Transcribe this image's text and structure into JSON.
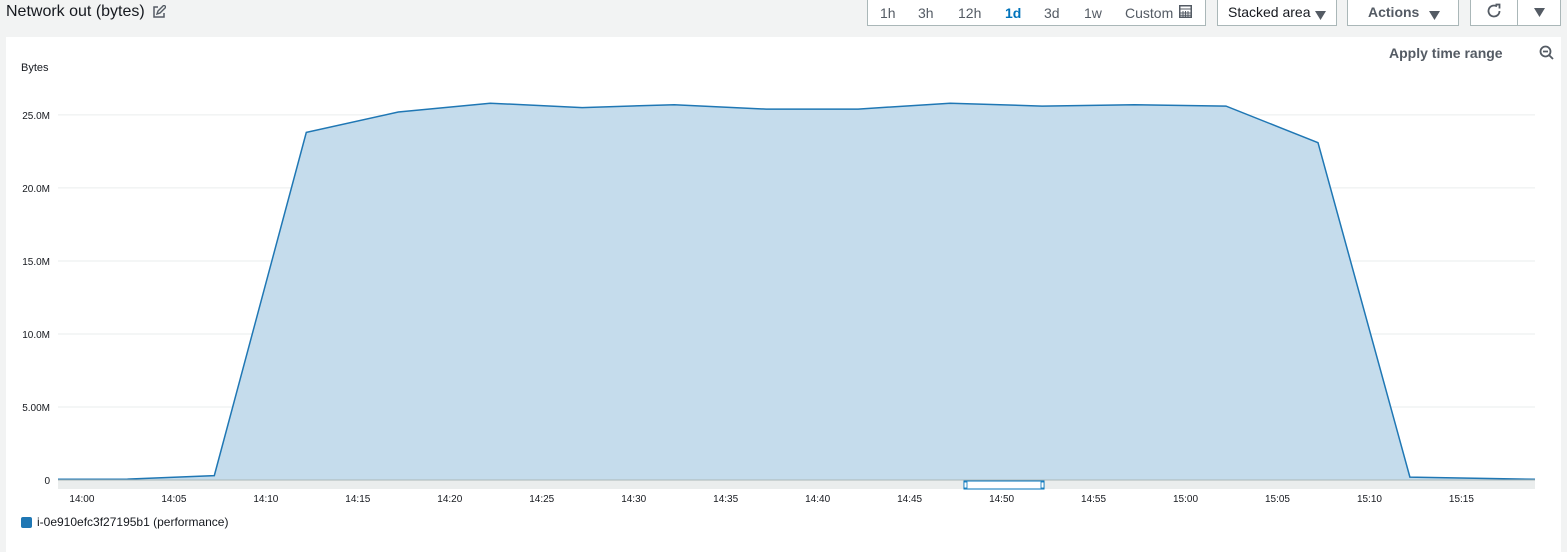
{
  "header": {
    "title": "Network out (bytes)",
    "edit_icon": "edit-icon"
  },
  "time_range": {
    "options": [
      "1h",
      "3h",
      "12h",
      "1d",
      "3d",
      "1w"
    ],
    "active": "1d",
    "custom_label": "Custom",
    "custom_icon": "calendar-icon"
  },
  "view_dropdown": {
    "label": "Stacked area"
  },
  "actions_dropdown": {
    "label": "Actions"
  },
  "refresh_icon": "refresh-icon",
  "more_icon": "caret-down-icon",
  "panel": {
    "apply_label": "Apply time range",
    "zoom_icon": "zoom-out-icon"
  },
  "colors": {
    "accent": "#0073bb",
    "series_line": "#1f77b4",
    "series_fill": "#c5dcec",
    "grid": "#eaeded"
  },
  "chart_data": {
    "type": "area",
    "ylabel": "Bytes",
    "ylim": [
      0,
      26500000
    ],
    "y_ticks": [
      {
        "value": 0,
        "label": "0"
      },
      {
        "value": 5000000,
        "label": "5.00M"
      },
      {
        "value": 10000000,
        "label": "10.0M"
      },
      {
        "value": 15000000,
        "label": "15.0M"
      },
      {
        "value": 20000000,
        "label": "20.0M"
      },
      {
        "value": 25000000,
        "label": "25.0M"
      }
    ],
    "x_ticks": [
      "14:00",
      "14:05",
      "14:10",
      "14:15",
      "14:20",
      "14:25",
      "14:30",
      "14:35",
      "14:40",
      "14:45",
      "14:50",
      "14:55",
      "15:00",
      "15:05",
      "15:10",
      "15:15"
    ],
    "x_range_minutes": [
      -1.3,
      79
    ],
    "series": [
      {
        "name": "i-0e910efc3f27195b1 (performance)",
        "points": [
          {
            "t": -1.3,
            "v": 50000
          },
          {
            "t": 2.2,
            "v": 50000
          },
          {
            "t": 7.2,
            "v": 300000
          },
          {
            "t": 12.2,
            "v": 23800000
          },
          {
            "t": 17.2,
            "v": 25200000
          },
          {
            "t": 22.2,
            "v": 25800000
          },
          {
            "t": 27.2,
            "v": 25500000
          },
          {
            "t": 32.2,
            "v": 25700000
          },
          {
            "t": 37.2,
            "v": 25400000
          },
          {
            "t": 42.2,
            "v": 25400000
          },
          {
            "t": 47.2,
            "v": 25800000
          },
          {
            "t": 52.2,
            "v": 25600000
          },
          {
            "t": 57.2,
            "v": 25700000
          },
          {
            "t": 62.2,
            "v": 25600000
          },
          {
            "t": 67.2,
            "v": 23100000
          },
          {
            "t": 72.2,
            "v": 200000
          },
          {
            "t": 79,
            "v": 50000
          }
        ]
      }
    ],
    "grid": true,
    "legend_position": "bottom-left"
  }
}
